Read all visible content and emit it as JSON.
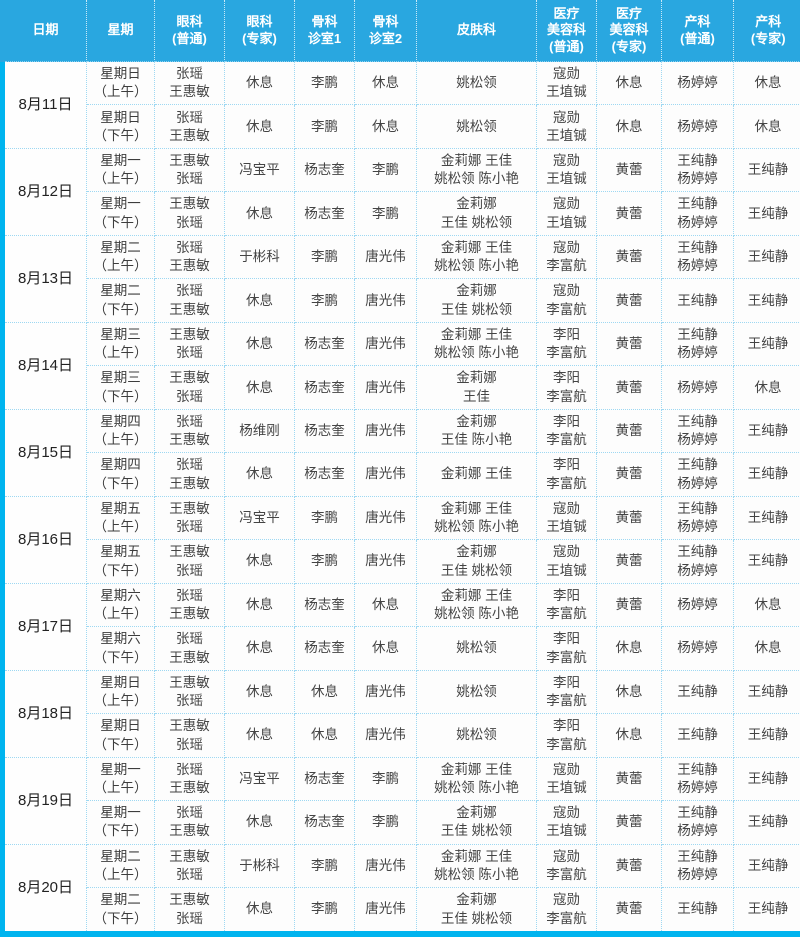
{
  "table": {
    "columns": [
      {
        "key": "date",
        "label": "日期"
      },
      {
        "key": "weekday",
        "label": "星期"
      },
      {
        "key": "yanke-putong",
        "label": "眼科\n(普通)"
      },
      {
        "key": "yanke-zhuanjia",
        "label": "眼科\n(专家)"
      },
      {
        "key": "guke-zhenshi1",
        "label": "骨科\n诊室1"
      },
      {
        "key": "guke-zhenshi2",
        "label": "骨科\n诊室2"
      },
      {
        "key": "pifuke",
        "label": "皮肤科"
      },
      {
        "key": "yiliao-meirong-putong",
        "label": "医疗\n美容科\n(普通)"
      },
      {
        "key": "yiliao-meirong-zhuanjia",
        "label": "医疗\n美容科\n(专家)"
      },
      {
        "key": "chanke-putong",
        "label": "产科\n(普通)"
      },
      {
        "key": "chanke-zhuanjia",
        "label": "产科\n(专家)"
      }
    ],
    "rest_label": "休息",
    "days": [
      {
        "date": "8月11日",
        "sessions": [
          {
            "weekday": "星期日\n（上午）",
            "cells": [
              "张瑶\n王惠敏",
              "休息",
              "李鹏",
              "休息",
              "姚松领",
              "寇勋\n王埴铖",
              "休息",
              "杨婷婷",
              "休息"
            ]
          },
          {
            "weekday": "星期日\n（下午）",
            "cells": [
              "张瑶\n王惠敏",
              "休息",
              "李鹏",
              "休息",
              "姚松领",
              "寇勋\n王埴铖",
              "休息",
              "杨婷婷",
              "休息"
            ]
          }
        ]
      },
      {
        "date": "8月12日",
        "sessions": [
          {
            "weekday": "星期一\n（上午）",
            "cells": [
              "王惠敏\n张瑶",
              "冯宝平",
              "杨志奎",
              "李鹏",
              "金莉娜 王佳\n姚松领 陈小艳",
              "寇勋\n王埴铖",
              "黄蕾",
              "王纯静\n杨婷婷",
              "王纯静"
            ]
          },
          {
            "weekday": "星期一\n（下午）",
            "cells": [
              "王惠敏\n张瑶",
              "休息",
              "杨志奎",
              "李鹏",
              "金莉娜\n王佳 姚松领",
              "寇勋\n王埴铖",
              "黄蕾",
              "王纯静\n杨婷婷",
              "王纯静"
            ]
          }
        ]
      },
      {
        "date": "8月13日",
        "sessions": [
          {
            "weekday": "星期二\n（上午）",
            "cells": [
              "张瑶\n王惠敏",
              "于彬科",
              "李鹏",
              "唐光伟",
              "金莉娜 王佳\n姚松领 陈小艳",
              "寇勋\n李富航",
              "黄蕾",
              "王纯静\n杨婷婷",
              "王纯静"
            ]
          },
          {
            "weekday": "星期二\n（下午）",
            "cells": [
              "张瑶\n王惠敏",
              "休息",
              "李鹏",
              "唐光伟",
              "金莉娜\n王佳 姚松领",
              "寇勋\n李富航",
              "黄蕾",
              "王纯静",
              "王纯静"
            ]
          }
        ]
      },
      {
        "date": "8月14日",
        "sessions": [
          {
            "weekday": "星期三\n（上午）",
            "cells": [
              "王惠敏\n张瑶",
              "休息",
              "杨志奎",
              "唐光伟",
              "金莉娜 王佳\n姚松领 陈小艳",
              "李阳\n李富航",
              "黄蕾",
              "王纯静\n杨婷婷",
              "王纯静"
            ]
          },
          {
            "weekday": "星期三\n（下午）",
            "cells": [
              "王惠敏\n张瑶",
              "休息",
              "杨志奎",
              "唐光伟",
              "金莉娜\n王佳",
              "李阳\n李富航",
              "黄蕾",
              "杨婷婷",
              "休息"
            ]
          }
        ]
      },
      {
        "date": "8月15日",
        "sessions": [
          {
            "weekday": "星期四\n（上午）",
            "cells": [
              "张瑶\n王惠敏",
              "杨维刚",
              "杨志奎",
              "唐光伟",
              "金莉娜\n王佳 陈小艳",
              "李阳\n李富航",
              "黄蕾",
              "王纯静\n杨婷婷",
              "王纯静"
            ]
          },
          {
            "weekday": "星期四\n（下午）",
            "cells": [
              "张瑶\n王惠敏",
              "休息",
              "杨志奎",
              "唐光伟",
              "金莉娜 王佳",
              "李阳\n李富航",
              "黄蕾",
              "王纯静\n杨婷婷",
              "王纯静"
            ]
          }
        ]
      },
      {
        "date": "8月16日",
        "sessions": [
          {
            "weekday": "星期五\n（上午）",
            "cells": [
              "王惠敏\n张瑶",
              "冯宝平",
              "李鹏",
              "唐光伟",
              "金莉娜 王佳\n姚松领 陈小艳",
              "寇勋\n王埴铖",
              "黄蕾",
              "王纯静\n杨婷婷",
              "王纯静"
            ]
          },
          {
            "weekday": "星期五\n（下午）",
            "cells": [
              "王惠敏\n张瑶",
              "休息",
              "李鹏",
              "唐光伟",
              "金莉娜\n王佳 姚松领",
              "寇勋\n王埴铖",
              "黄蕾",
              "王纯静\n杨婷婷",
              "王纯静"
            ]
          }
        ]
      },
      {
        "date": "8月17日",
        "sessions": [
          {
            "weekday": "星期六\n（上午）",
            "cells": [
              "张瑶\n王惠敏",
              "休息",
              "杨志奎",
              "休息",
              "金莉娜 王佳\n姚松领 陈小艳",
              "李阳\n李富航",
              "黄蕾",
              "杨婷婷",
              "休息"
            ]
          },
          {
            "weekday": "星期六\n（下午）",
            "cells": [
              "张瑶\n王惠敏",
              "休息",
              "杨志奎",
              "休息",
              "姚松领",
              "李阳\n李富航",
              "休息",
              "杨婷婷",
              "休息"
            ]
          }
        ]
      },
      {
        "date": "8月18日",
        "sessions": [
          {
            "weekday": "星期日\n（上午）",
            "cells": [
              "王惠敏\n张瑶",
              "休息",
              "休息",
              "唐光伟",
              "姚松领",
              "李阳\n李富航",
              "休息",
              "王纯静",
              "王纯静"
            ]
          },
          {
            "weekday": "星期日\n（下午）",
            "cells": [
              "王惠敏\n张瑶",
              "休息",
              "休息",
              "唐光伟",
              "姚松领",
              "李阳\n李富航",
              "休息",
              "王纯静",
              "王纯静"
            ]
          }
        ]
      },
      {
        "date": "8月19日",
        "sessions": [
          {
            "weekday": "星期一\n（上午）",
            "cells": [
              "张瑶\n王惠敏",
              "冯宝平",
              "杨志奎",
              "李鹏",
              "金莉娜 王佳\n姚松领 陈小艳",
              "寇勋\n王埴铖",
              "黄蕾",
              "王纯静\n杨婷婷",
              "王纯静"
            ]
          },
          {
            "weekday": "星期一\n（下午）",
            "cells": [
              "张瑶\n王惠敏",
              "休息",
              "杨志奎",
              "李鹏",
              "金莉娜\n王佳 姚松领",
              "寇勋\n王埴铖",
              "黄蕾",
              "王纯静\n杨婷婷",
              "王纯静"
            ]
          }
        ]
      },
      {
        "date": "8月20日",
        "sessions": [
          {
            "weekday": "星期二\n（上午）",
            "cells": [
              "王惠敏\n张瑶",
              "于彬科",
              "李鹏",
              "唐光伟",
              "金莉娜 王佳\n姚松领 陈小艳",
              "寇勋\n李富航",
              "黄蕾",
              "王纯静\n杨婷婷",
              "王纯静"
            ]
          },
          {
            "weekday": "星期二\n（下午）",
            "cells": [
              "王惠敏\n张瑶",
              "休息",
              "李鹏",
              "唐光伟",
              "金莉娜\n王佳 姚松领",
              "寇勋\n李富航",
              "黄蕾",
              "王纯静",
              "王纯静"
            ]
          }
        ]
      }
    ]
  },
  "colors": {
    "header_bg": "#29a7e0",
    "outer_border": "#00b4ef",
    "grid_dotted": "#9ed8f2",
    "cell_bg": "#fdfdfd",
    "header_text": "#ffffff",
    "body_text": "#444444"
  }
}
